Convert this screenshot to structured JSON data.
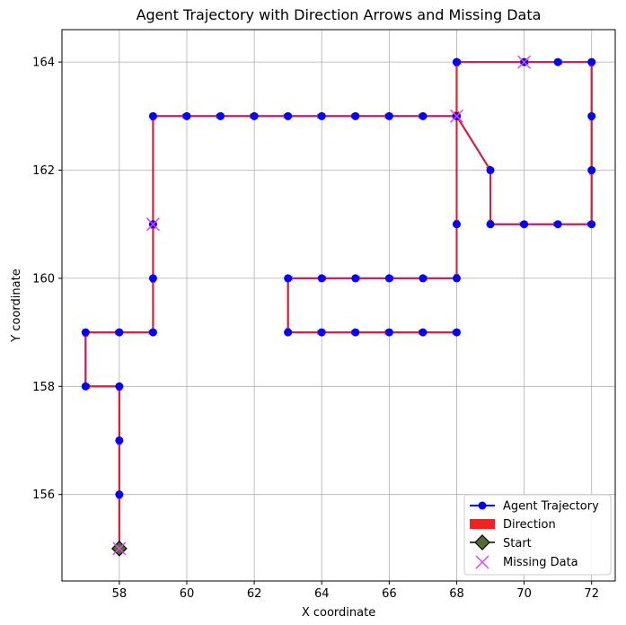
{
  "chart_data": {
    "type": "line",
    "title": "Agent Trajectory with Direction Arrows and Missing Data",
    "xlabel": "X coordinate",
    "ylabel": "Y coordinate",
    "xlim": [
      56.3,
      72.7
    ],
    "ylim": [
      154.4,
      164.6
    ],
    "xticks": [
      58,
      60,
      62,
      64,
      66,
      68,
      70,
      72
    ],
    "yticks": [
      156,
      158,
      160,
      162,
      164
    ],
    "grid": true,
    "legend_position": "lower-right",
    "colors": {
      "trajectory": "#0000ff",
      "arrow": "#ee2222",
      "start": "#000000",
      "start_fill": "#556b2f",
      "missing": "#dd44ee"
    },
    "series": [
      {
        "name": "Agent Trajectory",
        "points": [
          [
            58,
            155
          ],
          [
            58,
            156
          ],
          [
            58,
            157
          ],
          [
            58,
            158
          ],
          [
            57,
            158
          ],
          [
            57,
            159
          ],
          [
            58,
            159
          ],
          [
            59,
            159
          ],
          [
            59,
            160
          ],
          [
            59,
            161
          ],
          [
            59,
            163
          ],
          [
            60,
            163
          ],
          [
            61,
            163
          ],
          [
            62,
            163
          ],
          [
            63,
            163
          ],
          [
            64,
            163
          ],
          [
            65,
            163
          ],
          [
            66,
            163
          ],
          [
            67,
            163
          ],
          [
            68,
            163
          ],
          [
            68,
            164
          ],
          [
            68,
            163
          ],
          [
            69,
            162
          ],
          [
            69,
            161
          ],
          [
            70,
            161
          ],
          [
            71,
            161
          ],
          [
            72,
            161
          ],
          [
            72,
            162
          ],
          [
            72,
            163
          ],
          [
            72,
            164
          ],
          [
            71,
            164
          ],
          [
            70,
            164
          ],
          [
            68,
            164
          ],
          [
            68,
            163
          ],
          [
            68,
            161
          ],
          [
            68,
            160
          ],
          [
            67,
            160
          ],
          [
            66,
            160
          ],
          [
            65,
            160
          ],
          [
            64,
            160
          ],
          [
            63,
            160
          ],
          [
            63,
            159
          ],
          [
            64,
            159
          ],
          [
            65,
            159
          ],
          [
            66,
            159
          ],
          [
            67,
            159
          ],
          [
            68,
            159
          ]
        ]
      }
    ],
    "start": [
      58,
      155
    ],
    "missing_data": [
      [
        58,
        155
      ],
      [
        59,
        161
      ],
      [
        68,
        163
      ],
      [
        70,
        164
      ]
    ],
    "legend": [
      "Agent Trajectory",
      "Direction",
      "Start",
      "Missing Data"
    ]
  }
}
